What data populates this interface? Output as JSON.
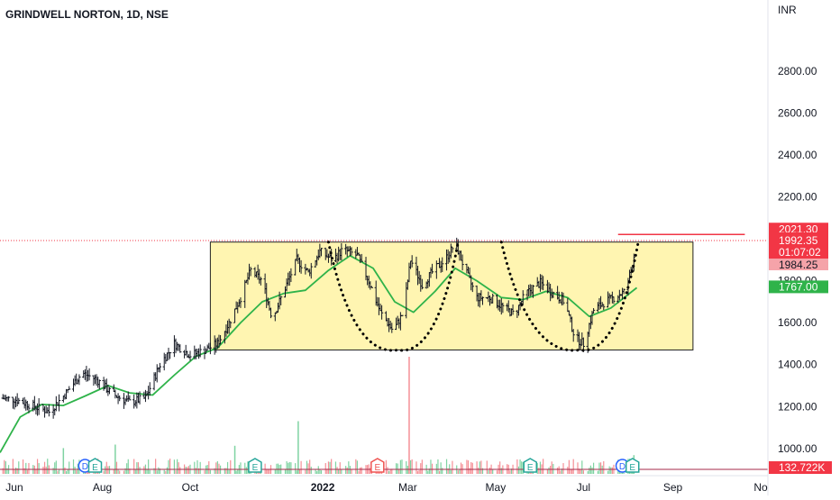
{
  "header": {
    "title": "GRINDWELL NORTON, 1D, NSE"
  },
  "currency": "INR",
  "colors": {
    "price_bar": "#131722",
    "ma_line": "#2fb34a",
    "pattern_box_fill": "#fff3a3",
    "pattern_box_stroke": "#222222",
    "resistance_line": "#f23645",
    "volume_up": "#7fd3a2",
    "volume_down": "#f58f96",
    "earnings_badge": "#26a69a",
    "dividend_badge": "#2962ff",
    "earnings_red_badge": "#ef5350"
  },
  "chart_data": {
    "type": "ohlc",
    "symbol": "GRINDWELL NORTON",
    "interval": "1D",
    "exchange": "NSE",
    "yaxis": {
      "ticks": [
        1000,
        1200,
        1400,
        1600,
        1800,
        2000,
        2200,
        2400,
        2600,
        2800
      ],
      "tick_labels": [
        "1000.00",
        "1200.00",
        "1400.00",
        "1600.00",
        "1800.00",
        "",
        "2200.00",
        "2400.00",
        "2600.00",
        "2800.00"
      ],
      "range": [
        870,
        3020
      ]
    },
    "xaxis": {
      "labels": [
        "Jun",
        "Aug",
        "Oct",
        "2022",
        "Mar",
        "May",
        "Jul",
        "Sep",
        "No"
      ],
      "label_dates": [
        "2021-06-01",
        "2021-08-01",
        "2021-10-01",
        "2022-01-01",
        "2022-03-01",
        "2022-05-01",
        "2022-07-01",
        "2022-09-01",
        "2022-11-01"
      ],
      "range": [
        "2021-05-22",
        "2022-11-06"
      ]
    },
    "price_badges": [
      {
        "label": "2021.30",
        "value": 2021.3,
        "kind": "high"
      },
      {
        "label": "1992.35",
        "value": 1992.35,
        "kind": "last"
      },
      {
        "label": "01:07:02",
        "value": 1992.35,
        "kind": "countdown"
      },
      {
        "label": "1984.25",
        "value": 1984.25,
        "kind": "low"
      },
      {
        "label": "1767.00",
        "value": 1767,
        "kind": "ma"
      }
    ],
    "volume_badge": "132.722K",
    "price_path": [
      [
        "2021-05-22",
        1240
      ],
      [
        "2021-06-01",
        1235
      ],
      [
        "2021-06-15",
        1200
      ],
      [
        "2021-06-25",
        1175
      ],
      [
        "2021-07-05",
        1250
      ],
      [
        "2021-07-18",
        1360
      ],
      [
        "2021-07-28",
        1330
      ],
      [
        "2021-08-08",
        1260
      ],
      [
        "2021-08-20",
        1220
      ],
      [
        "2021-08-31",
        1240
      ],
      [
        "2021-09-10",
        1400
      ],
      [
        "2021-09-20",
        1500
      ],
      [
        "2021-10-01",
        1445
      ],
      [
        "2021-10-10",
        1465
      ],
      [
        "2021-10-20",
        1500
      ],
      [
        "2021-10-28",
        1600
      ],
      [
        "2021-11-05",
        1720
      ],
      [
        "2021-11-12",
        1850
      ],
      [
        "2021-11-20",
        1800
      ],
      [
        "2021-11-27",
        1620
      ],
      [
        "2021-12-05",
        1750
      ],
      [
        "2021-12-14",
        1900
      ],
      [
        "2021-12-22",
        1840
      ],
      [
        "2021-12-30",
        1940
      ],
      [
        "2022-01-08",
        1900
      ],
      [
        "2022-01-15",
        1950
      ],
      [
        "2022-01-25",
        1920
      ],
      [
        "2022-02-02",
        1800
      ],
      [
        "2022-02-10",
        1650
      ],
      [
        "2022-02-19",
        1560
      ],
      [
        "2022-02-26",
        1650
      ],
      [
        "2022-03-03",
        1900
      ],
      [
        "2022-03-11",
        1780
      ],
      [
        "2022-03-19",
        1850
      ],
      [
        "2022-03-27",
        1900
      ],
      [
        "2022-04-03",
        1980
      ],
      [
        "2022-04-10",
        1850
      ],
      [
        "2022-04-18",
        1720
      ],
      [
        "2022-04-27",
        1720
      ],
      [
        "2022-05-05",
        1680
      ],
      [
        "2022-05-14",
        1640
      ],
      [
        "2022-05-22",
        1740
      ],
      [
        "2022-06-01",
        1790
      ],
      [
        "2022-06-10",
        1740
      ],
      [
        "2022-06-18",
        1700
      ],
      [
        "2022-06-25",
        1530
      ],
      [
        "2022-07-01",
        1500
      ],
      [
        "2022-07-08",
        1660
      ],
      [
        "2022-07-16",
        1700
      ],
      [
        "2022-07-22",
        1720
      ],
      [
        "2022-07-30",
        1750
      ],
      [
        "2022-08-04",
        1880
      ],
      [
        "2022-08-07",
        1992
      ]
    ],
    "moving_average": [
      [
        "2021-05-22",
        980
      ],
      [
        "2021-06-05",
        1150
      ],
      [
        "2021-06-20",
        1210
      ],
      [
        "2021-07-05",
        1205
      ],
      [
        "2021-07-20",
        1250
      ],
      [
        "2021-08-05",
        1300
      ],
      [
        "2021-08-20",
        1265
      ],
      [
        "2021-09-05",
        1255
      ],
      [
        "2021-09-20",
        1350
      ],
      [
        "2021-10-05",
        1440
      ],
      [
        "2021-10-20",
        1480
      ],
      [
        "2021-11-05",
        1600
      ],
      [
        "2021-11-20",
        1700
      ],
      [
        "2021-12-05",
        1740
      ],
      [
        "2021-12-20",
        1755
      ],
      [
        "2022-01-05",
        1850
      ],
      [
        "2022-01-20",
        1920
      ],
      [
        "2022-02-05",
        1860
      ],
      [
        "2022-02-20",
        1700
      ],
      [
        "2022-03-05",
        1650
      ],
      [
        "2022-03-20",
        1750
      ],
      [
        "2022-04-03",
        1860
      ],
      [
        "2022-04-18",
        1800
      ],
      [
        "2022-05-05",
        1720
      ],
      [
        "2022-05-20",
        1710
      ],
      [
        "2022-06-05",
        1750
      ],
      [
        "2022-06-20",
        1720
      ],
      [
        "2022-07-05",
        1630
      ],
      [
        "2022-07-20",
        1670
      ],
      [
        "2022-08-07",
        1767
      ]
    ],
    "annotations": {
      "rectangle": {
        "from": "2021-10-15",
        "to": "2022-09-15",
        "top": 1985,
        "bottom": 1470
      },
      "resistance_line": {
        "from": "2022-07-25",
        "to": "2022-10-21",
        "value": 2021.3
      },
      "dotted_last_price": {
        "value": 1992.35
      },
      "rounded_bottom_1": {
        "from": "2022-01-05",
        "to": "2022-04-05",
        "bottom_date": "2022-02-22",
        "bottom": 1470,
        "top": 1985
      },
      "rounded_bottom_2": {
        "from": "2022-05-05",
        "to": "2022-08-08",
        "bottom_date": "2022-06-28",
        "bottom": 1470,
        "top": 1985
      }
    },
    "events": [
      {
        "label": "D",
        "date": "2021-07-20",
        "type": "dividend"
      },
      {
        "label": "E",
        "date": "2021-07-27",
        "type": "earnings"
      },
      {
        "label": "E",
        "date": "2021-11-15",
        "type": "earnings"
      },
      {
        "label": "E",
        "date": "2022-02-08",
        "type": "earnings_red"
      },
      {
        "label": "E",
        "date": "2022-05-25",
        "type": "earnings"
      },
      {
        "label": "D",
        "date": "2022-07-28",
        "type": "dividend"
      },
      {
        "label": "E",
        "date": "2022-08-04",
        "type": "earnings"
      }
    ],
    "volume_spikes": [
      {
        "date": "2022-03-02",
        "value": 1.0,
        "direction": "down"
      },
      {
        "date": "2021-12-15",
        "value": 0.45,
        "direction": "up"
      },
      {
        "date": "2021-08-10",
        "value": 0.25,
        "direction": "up"
      },
      {
        "date": "2021-07-05",
        "value": 0.22,
        "direction": "up"
      },
      {
        "date": "2021-11-01",
        "value": 0.24,
        "direction": "up"
      },
      {
        "date": "2022-08-05",
        "value": 0.16,
        "direction": "up"
      }
    ]
  }
}
